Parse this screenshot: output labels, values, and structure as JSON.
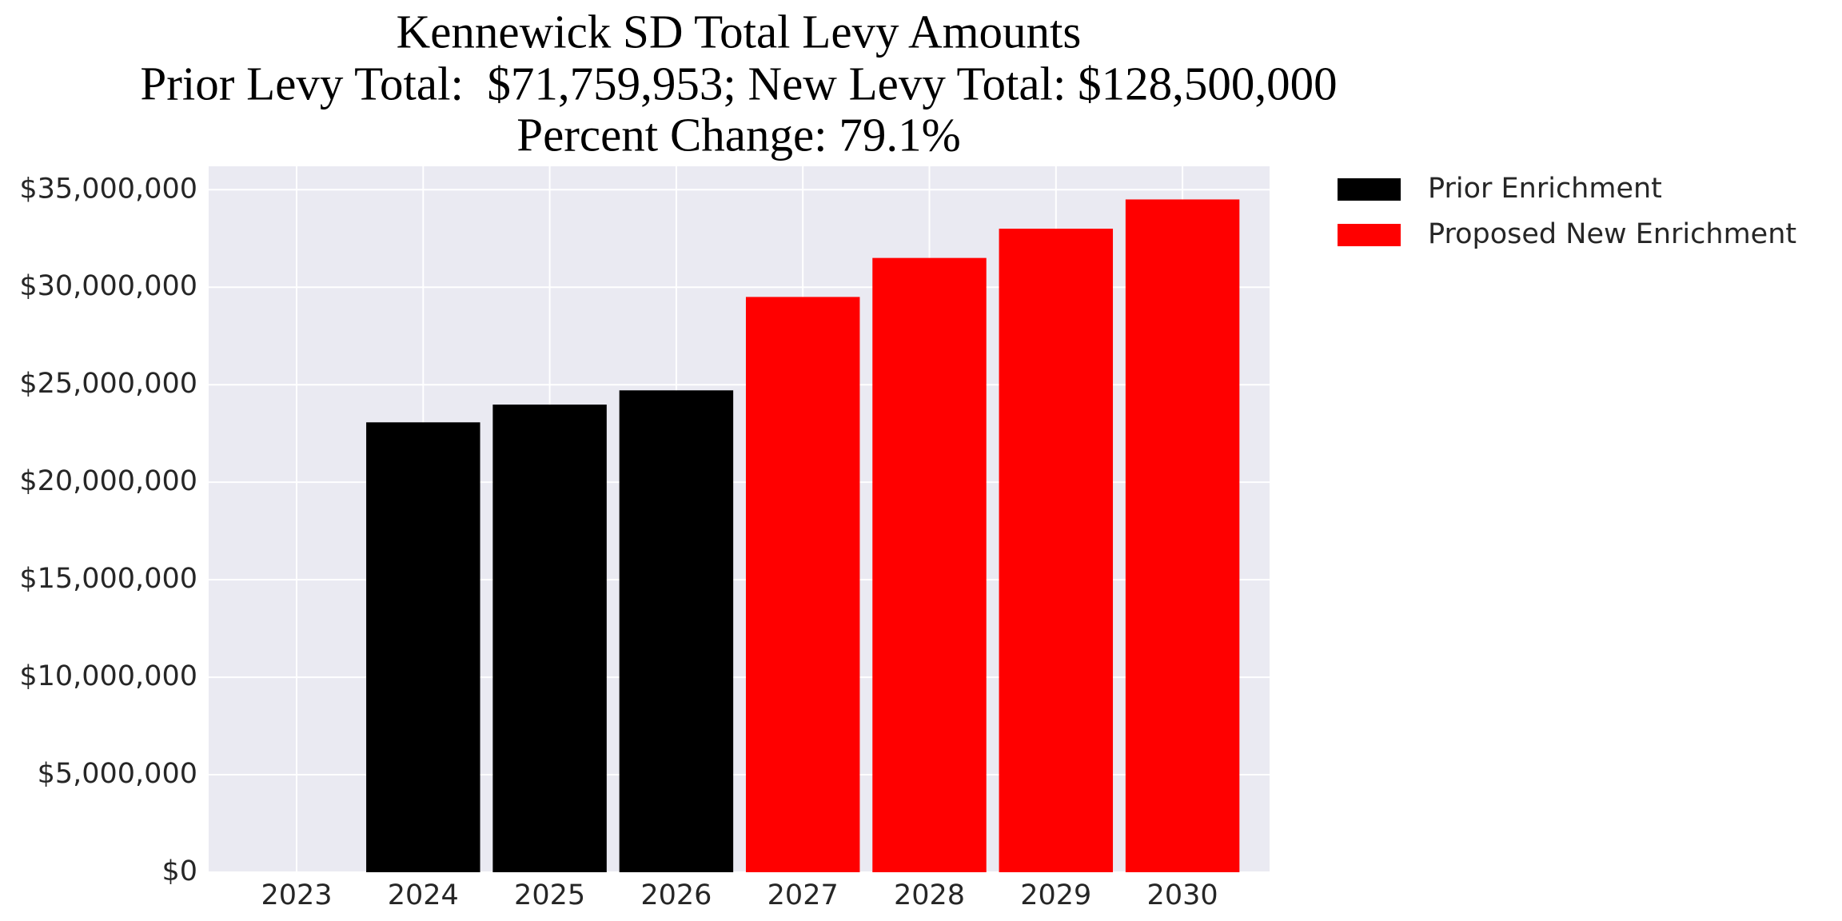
{
  "chart_data": {
    "type": "bar",
    "title": [
      "Kennewick SD Total Levy Amounts",
      "Prior Levy Total:  $71,759,953; New Levy Total: $128,500,000",
      "Percent Change: 79.1%"
    ],
    "categories": [
      "2023",
      "2024",
      "2025",
      "2026",
      "2027",
      "2028",
      "2029",
      "2030"
    ],
    "series": [
      {
        "name": "Prior Enrichment",
        "color": "#000000",
        "values": [
          null,
          23070000,
          23980000,
          24710000,
          null,
          null,
          null,
          null
        ]
      },
      {
        "name": "Proposed New Enrichment",
        "color": "#ff0000",
        "values": [
          null,
          null,
          null,
          null,
          29500000,
          31500000,
          33000000,
          34500000
        ]
      }
    ],
    "ylim": [
      0,
      36200000
    ],
    "yticks": [
      {
        "value": 0,
        "label": "$0"
      },
      {
        "value": 5000000,
        "label": "$5,000,000"
      },
      {
        "value": 10000000,
        "label": "$10,000,000"
      },
      {
        "value": 15000000,
        "label": "$15,000,000"
      },
      {
        "value": 20000000,
        "label": "$20,000,000"
      },
      {
        "value": 25000000,
        "label": "$25,000,000"
      },
      {
        "value": 30000000,
        "label": "$30,000,000"
      },
      {
        "value": 35000000,
        "label": "$35,000,000"
      }
    ],
    "grid": true,
    "legend": "outside upper right"
  }
}
